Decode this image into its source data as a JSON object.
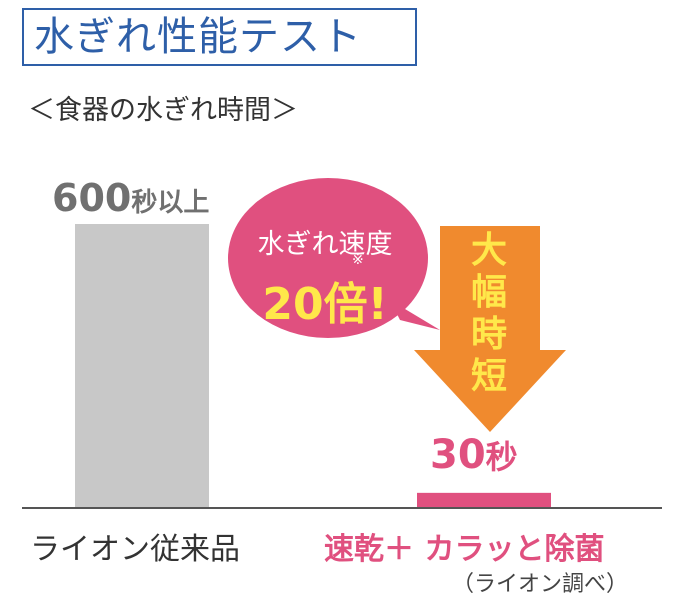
{
  "title": "水ぎれ性能テスト",
  "subtitle": "＜食器の水ぎれ時間＞",
  "chart_data": {
    "type": "bar",
    "categories": [
      "ライオン従来品",
      "速乾＋ カラッと除菌"
    ],
    "values": [
      600,
      30
    ],
    "value_labels": [
      {
        "number": "600",
        "unit": "秒以上"
      },
      {
        "number": "30",
        "unit": "秒"
      }
    ],
    "colors": [
      "#c8c8c8",
      "#e0507f"
    ],
    "ylim": [
      0,
      600
    ],
    "grid": false
  },
  "callout": {
    "line1": "水ぎれ速度",
    "note_mark": "※",
    "line2": "20倍!",
    "color": "#e0507f"
  },
  "arrow": {
    "chars": [
      "大",
      "幅",
      "時",
      "短"
    ],
    "color": "#f08a2e"
  },
  "source": "（ライオン調べ）"
}
